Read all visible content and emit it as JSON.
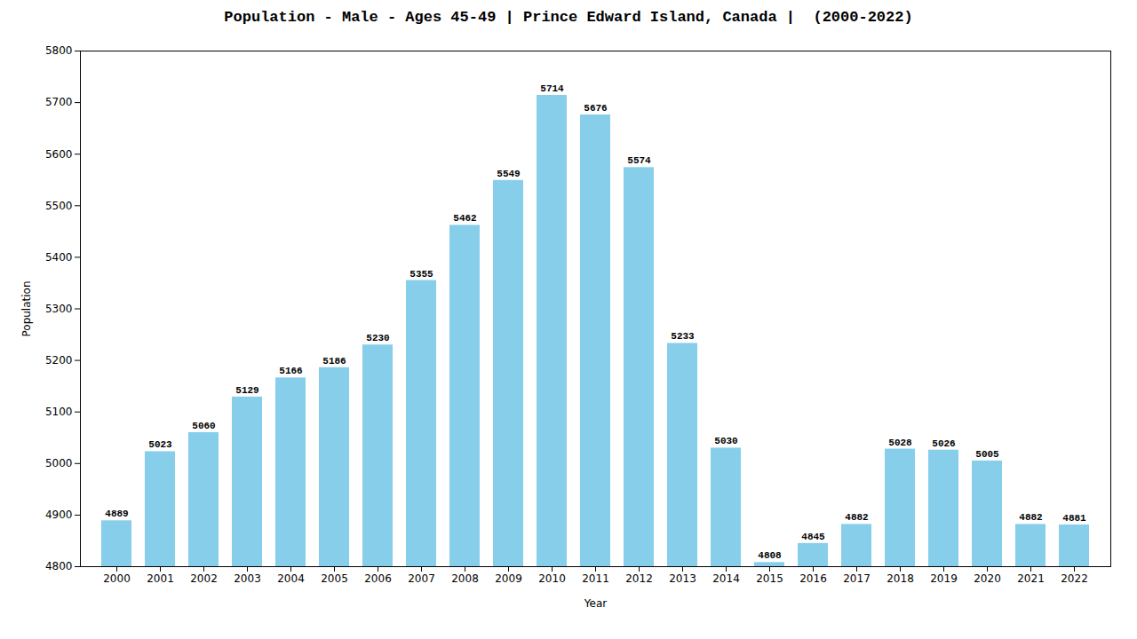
{
  "chart_data": {
    "type": "bar",
    "title": "Population - Male - Ages 45-49 | Prince Edward Island, Canada |  (2000-2022)",
    "xlabel": "Year",
    "ylabel": "Population",
    "categories": [
      "2000",
      "2001",
      "2002",
      "2003",
      "2004",
      "2005",
      "2006",
      "2007",
      "2008",
      "2009",
      "2010",
      "2011",
      "2012",
      "2013",
      "2014",
      "2015",
      "2016",
      "2017",
      "2018",
      "2019",
      "2020",
      "2021",
      "2022"
    ],
    "values": [
      4889,
      5023,
      5060,
      5129,
      5166,
      5186,
      5230,
      5355,
      5462,
      5549,
      5714,
      5676,
      5574,
      5233,
      5030,
      4808,
      4845,
      4882,
      5028,
      5026,
      5005,
      4882,
      4881
    ],
    "color": "#87CEEB",
    "ylim": [
      4800,
      5800
    ],
    "yticks": [
      4800,
      4900,
      5000,
      5100,
      5200,
      5300,
      5400,
      5500,
      5600,
      5700,
      5800
    ],
    "grid": false,
    "data_labels": true
  }
}
